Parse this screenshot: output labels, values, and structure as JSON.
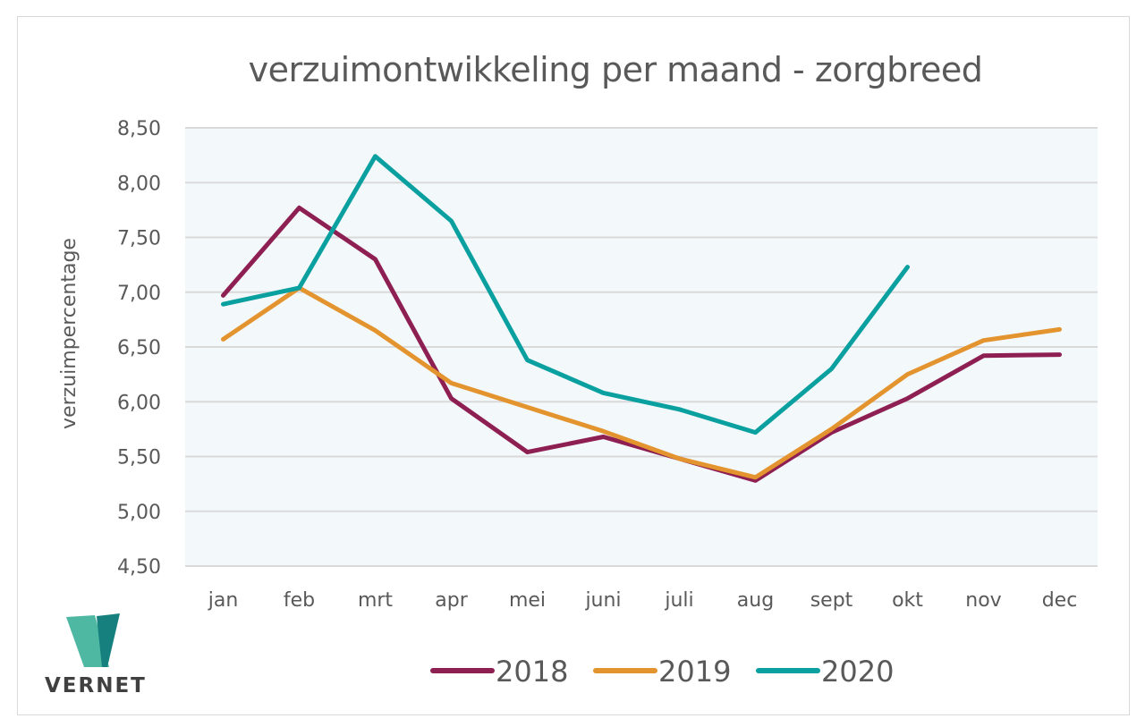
{
  "chart_data": {
    "type": "line",
    "title": "verzuimontwikkeling per maand - zorgbreed",
    "xlabel": "",
    "ylabel": "verzuimpercentage",
    "ylim": [
      4.5,
      8.5
    ],
    "yticks": [
      "8,50",
      "8,00",
      "7,50",
      "7,00",
      "6,50",
      "6,00",
      "5,50",
      "5,00",
      "4,50"
    ],
    "ytick_values": [
      8.5,
      8.0,
      7.5,
      7.0,
      6.5,
      6.0,
      5.5,
      5.0,
      4.5
    ],
    "grid": true,
    "legend_position": "bottom",
    "categories": [
      "jan",
      "feb",
      "mrt",
      "apr",
      "mei",
      "juni",
      "juli",
      "aug",
      "sept",
      "okt",
      "nov",
      "dec"
    ],
    "series": [
      {
        "name": "2018",
        "color": "#8e1f52",
        "values": [
          6.97,
          7.77,
          7.3,
          6.03,
          5.54,
          5.68,
          5.48,
          5.28,
          5.72,
          6.03,
          6.42,
          6.43
        ]
      },
      {
        "name": "2019",
        "color": "#e3942f",
        "values": [
          6.57,
          7.04,
          6.65,
          6.17,
          5.95,
          5.73,
          5.48,
          5.31,
          5.75,
          6.25,
          6.56,
          6.66
        ]
      },
      {
        "name": "2020",
        "color": "#0aa0a0",
        "values": [
          6.89,
          7.04,
          8.24,
          7.65,
          6.38,
          6.08,
          5.93,
          5.72,
          6.3,
          7.23,
          null,
          null
        ]
      }
    ]
  },
  "branding": {
    "logo_text": "VERNET",
    "logo_colors": [
      "#4fb8a2",
      "#16807f"
    ]
  },
  "plot_background": "#f3f8fb"
}
